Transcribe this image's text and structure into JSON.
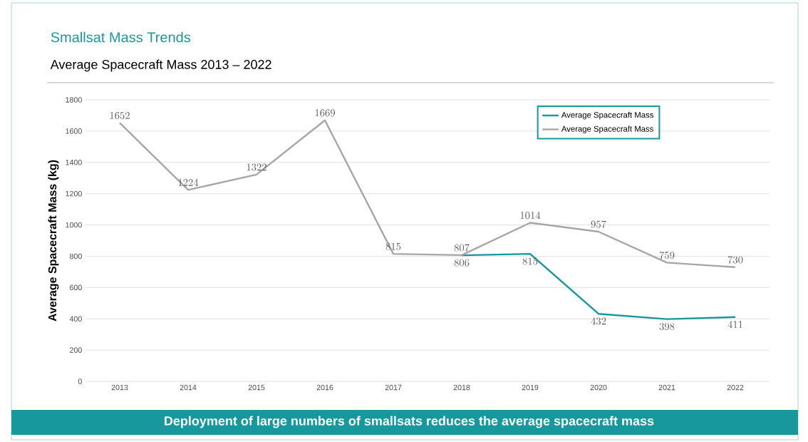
{
  "chart_data": {
    "type": "line",
    "title": "Smallsat Mass Trends",
    "subtitle": "Average Spacecraft Mass 2013 – 2022",
    "ylabel": "Average Spacecraft Mass (kg)",
    "categories": [
      "2013",
      "2014",
      "2015",
      "2016",
      "2017",
      "2018",
      "2019",
      "2020",
      "2021",
      "2022"
    ],
    "series": [
      {
        "name": "Average Spacecraft Mass",
        "color": "#17989d",
        "values": [
          null,
          null,
          null,
          null,
          null,
          806,
          815,
          432,
          398,
          411
        ]
      },
      {
        "name": "Average Spacecraft Mass",
        "color": "#a6a6a6",
        "values": [
          1652,
          1224,
          1322,
          1669,
          815,
          807,
          1014,
          957,
          759,
          730
        ]
      }
    ],
    "ylim": [
      0,
      1800
    ],
    "yticks": [
      0,
      200,
      400,
      600,
      800,
      1000,
      1200,
      1400,
      1600,
      1800
    ],
    "grid": "y",
    "legend": "top right",
    "data_labels": true,
    "annotations": [
      "Deployment of large numbers of smallsats reduces the average spacecraft mass"
    ]
  }
}
